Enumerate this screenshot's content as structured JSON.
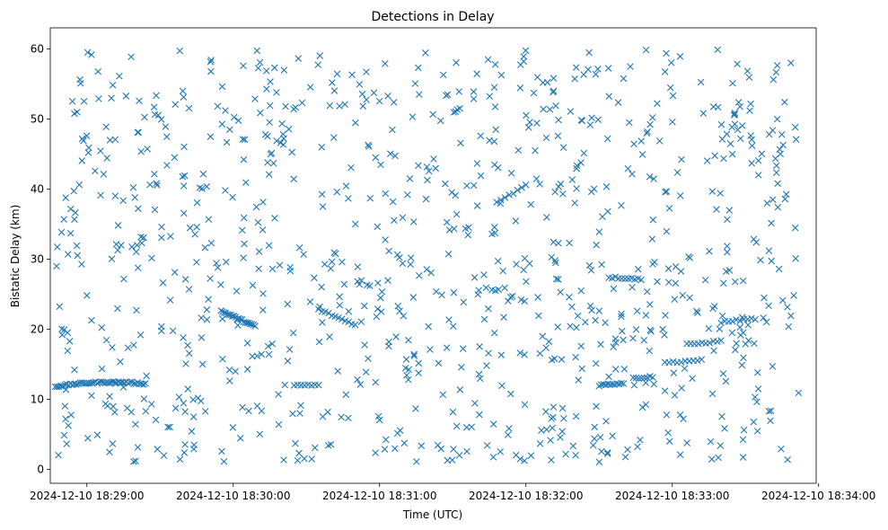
{
  "chart_data": {
    "type": "scatter",
    "title": "Detections in Delay",
    "xlabel": "Time (UTC)",
    "ylabel": "Bistatic Delay (km)",
    "marker": "x",
    "color": "#1f77b4",
    "grid": false,
    "xlim": [
      "2024-12-10 18:28:45",
      "2024-12-10 18:33:59"
    ],
    "ylim": [
      -2,
      63
    ],
    "x_ticks": [
      "2024-12-10 18:29:00",
      "2024-12-10 18:30:00",
      "2024-12-10 18:31:00",
      "2024-12-10 18:32:00",
      "2024-12-10 18:33:00",
      "2024-12-10 18:34:00"
    ],
    "y_ticks": [
      0,
      10,
      20,
      30,
      40,
      50,
      60
    ],
    "tracks": [
      {
        "from": "2024-12-10 18:28:47",
        "to": "2024-12-10 18:29:24",
        "y0": 11.8,
        "y1": 12.2,
        "peak": 12.4,
        "count": 48
      },
      {
        "from": "2024-12-10 18:29:55",
        "to": "2024-12-10 18:30:09",
        "y0": 22.6,
        "y1": 20.4,
        "count": 22
      },
      {
        "from": "2024-12-10 18:30:25",
        "to": "2024-12-10 18:30:35",
        "y0": 12.0,
        "y1": 12.0,
        "count": 8
      },
      {
        "from": "2024-12-10 18:30:35",
        "to": "2024-12-10 18:30:50",
        "y0": 22.8,
        "y1": 20.6,
        "count": 12
      },
      {
        "from": "2024-12-10 18:32:30",
        "to": "2024-12-10 18:32:40",
        "y0": 12.0,
        "y1": 12.3,
        "count": 12
      },
      {
        "from": "2024-12-10 18:32:34",
        "to": "2024-12-10 18:32:46",
        "y0": 27.4,
        "y1": 27.2,
        "count": 10
      },
      {
        "from": "2024-12-10 18:32:44",
        "to": "2024-12-10 18:32:52",
        "y0": 13.0,
        "y1": 13.2,
        "count": 8
      },
      {
        "from": "2024-12-10 18:32:57",
        "to": "2024-12-10 18:33:12",
        "y0": 15.2,
        "y1": 15.6,
        "count": 10
      },
      {
        "from": "2024-12-10 18:33:06",
        "to": "2024-12-10 18:33:20",
        "y0": 17.8,
        "y1": 18.3,
        "count": 10
      },
      {
        "from": "2024-12-10 18:33:20",
        "to": "2024-12-10 18:33:34",
        "y0": 21.0,
        "y1": 21.5,
        "count": 10
      },
      {
        "from": "2024-12-10 18:31:48",
        "to": "2024-12-10 18:32:00",
        "y0": 38.0,
        "y1": 40.5,
        "count": 8
      }
    ],
    "noise": {
      "from": "2024-12-10 18:28:47",
      "to": "2024-12-10 18:33:52",
      "ymin": 1,
      "ymax": 60,
      "count": 950,
      "seed": 12345
    }
  }
}
